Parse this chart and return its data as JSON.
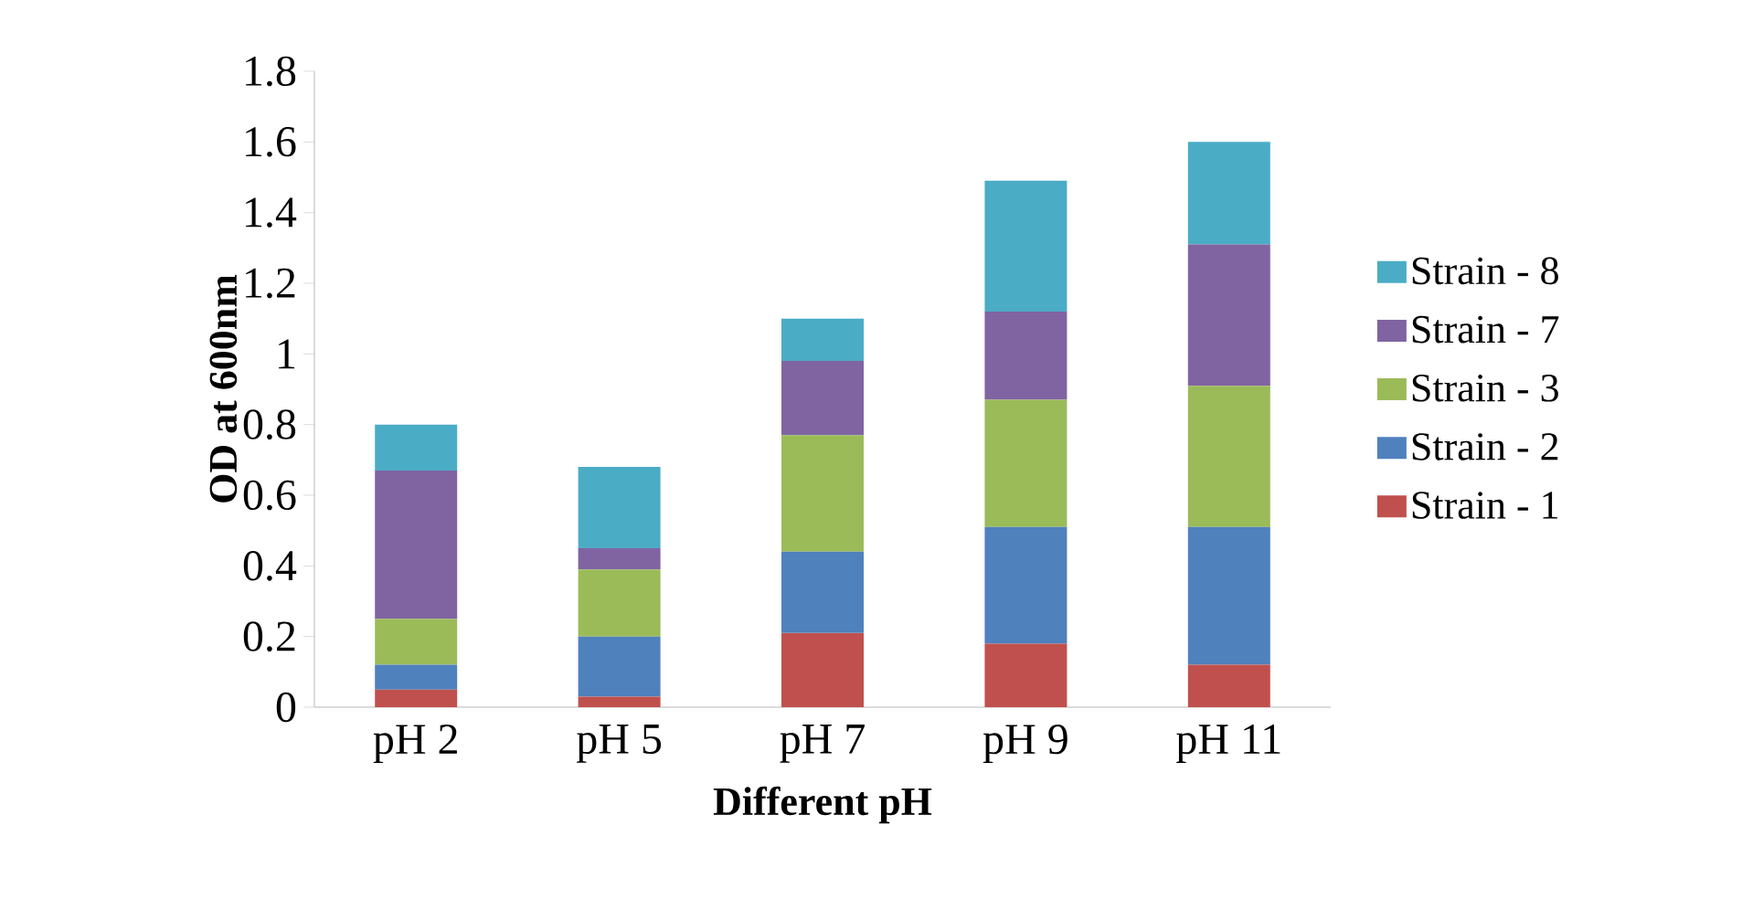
{
  "chart_data": {
    "type": "bar",
    "stacked": true,
    "xlabel": "Different pH",
    "ylabel": "OD at  600nm",
    "categories": [
      "pH 2",
      "pH 5",
      "pH 7",
      "pH 9",
      "pH 11"
    ],
    "series": [
      {
        "name": "Strain - 1",
        "color": "#c0504d",
        "values": [
          0.05,
          0.03,
          0.21,
          0.18,
          0.12
        ]
      },
      {
        "name": "Strain - 2",
        "color": "#4f81bd",
        "values": [
          0.07,
          0.17,
          0.23,
          0.33,
          0.39
        ]
      },
      {
        "name": "Strain - 3",
        "color": "#9bbb59",
        "values": [
          0.13,
          0.19,
          0.33,
          0.36,
          0.4
        ]
      },
      {
        "name": "Strain - 7",
        "color": "#8064a2",
        "values": [
          0.42,
          0.06,
          0.21,
          0.25,
          0.4
        ]
      },
      {
        "name": "Strain - 8",
        "color": "#4bacc6",
        "values": [
          0.13,
          0.23,
          0.12,
          0.37,
          0.29
        ]
      }
    ],
    "ylim": [
      0,
      1.8
    ],
    "yticks": [
      0,
      0.2,
      0.4,
      0.6,
      0.8,
      1,
      1.2,
      1.4,
      1.6,
      1.8
    ],
    "grid": false,
    "legend": "right"
  }
}
